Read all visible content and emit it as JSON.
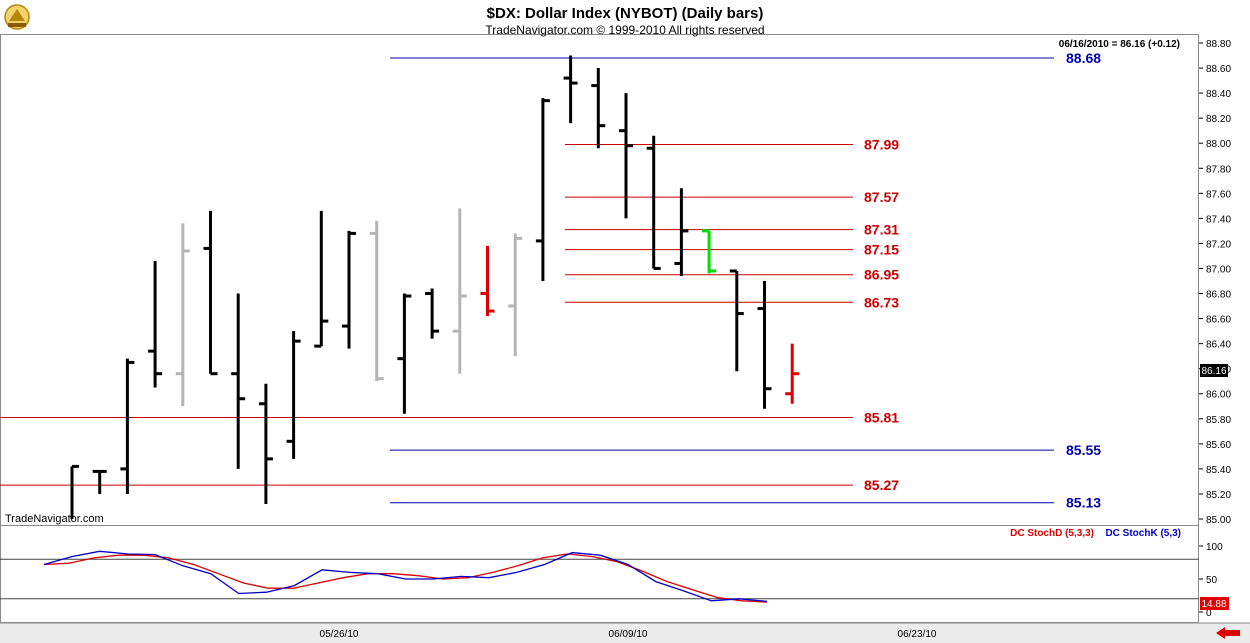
{
  "header": {
    "title": "$DX:  Dollar Index (NYBOT)  (Daily bars)",
    "subtitle": "TradeNavigator.com © 1999-2010 All rights reserved",
    "quote": "06/16/2010 = 86.16 (+0.12)",
    "watermark": "TradeNavigator.com"
  },
  "chart_data": [
    {
      "type": "ohlc",
      "title": "$DX:  Dollar Index (NYBOT)  (Daily bars)",
      "ylim": [
        85.0,
        88.8
      ],
      "yticks": [
        "88.80",
        "88.60",
        "88.40",
        "88.20",
        "88.00",
        "87.80",
        "87.60",
        "87.40",
        "87.20",
        "87.00",
        "86.80",
        "86.60",
        "86.40",
        "86.20",
        "86.00",
        "85.80",
        "85.60",
        "85.40",
        "85.20",
        "85.00"
      ],
      "last_price_label": "86.16",
      "bars": [
        {
          "o": null,
          "h": 85.42,
          "l": 85.0,
          "c": 85.42,
          "color": "#000000"
        },
        {
          "o": 85.38,
          "h": 85.38,
          "l": 85.2,
          "c": 85.38,
          "color": "#000000"
        },
        {
          "o": 85.4,
          "h": 86.28,
          "l": 85.2,
          "c": 86.25,
          "color": "#000000"
        },
        {
          "o": 86.34,
          "h": 87.06,
          "l": 86.05,
          "c": 86.16,
          "color": "#000000"
        },
        {
          "o": 86.16,
          "h": 87.36,
          "l": 85.9,
          "c": 87.14,
          "color": "#b4b4b4"
        },
        {
          "o": 87.16,
          "h": 87.46,
          "l": 86.16,
          "c": 86.16,
          "color": "#000000"
        },
        {
          "o": 86.16,
          "h": 86.8,
          "l": 85.4,
          "c": 85.96,
          "color": "#000000"
        },
        {
          "o": 85.92,
          "h": 86.08,
          "l": 85.12,
          "c": 85.48,
          "color": "#000000"
        },
        {
          "o": 85.62,
          "h": 86.5,
          "l": 85.48,
          "c": 86.42,
          "color": "#000000"
        },
        {
          "o": 86.38,
          "h": 87.46,
          "l": 86.38,
          "c": 86.58,
          "color": "#000000"
        },
        {
          "o": 86.54,
          "h": 87.3,
          "l": 86.36,
          "c": 87.28,
          "color": "#000000"
        },
        {
          "o": 87.28,
          "h": 87.38,
          "l": 86.1,
          "c": 86.12,
          "color": "#b4b4b4"
        },
        {
          "o": 86.28,
          "h": 86.8,
          "l": 85.84,
          "c": 86.78,
          "color": "#000000"
        },
        {
          "o": 86.8,
          "h": 86.84,
          "l": 86.44,
          "c": 86.5,
          "color": "#000000"
        },
        {
          "o": 86.5,
          "h": 87.48,
          "l": 86.16,
          "c": 86.78,
          "color": "#b4b4b4"
        },
        {
          "o": 86.8,
          "h": 87.18,
          "l": 86.62,
          "c": 86.66,
          "color": "#dd0000"
        },
        {
          "o": 86.7,
          "h": 87.28,
          "l": 86.3,
          "c": 87.24,
          "color": "#b4b4b4"
        },
        {
          "o": 87.22,
          "h": 88.36,
          "l": 86.9,
          "c": 88.34,
          "color": "#000000"
        },
        {
          "o": 88.52,
          "h": 88.7,
          "l": 88.16,
          "c": 88.48,
          "color": "#000000"
        },
        {
          "o": 88.46,
          "h": 88.6,
          "l": 87.96,
          "c": 88.14,
          "color": "#000000"
        },
        {
          "o": 88.1,
          "h": 88.4,
          "l": 87.4,
          "c": 87.98,
          "color": "#000000"
        },
        {
          "o": 87.96,
          "h": 88.06,
          "l": 87.0,
          "c": 87.0,
          "color": "#000000"
        },
        {
          "o": 87.04,
          "h": 87.64,
          "l": 86.94,
          "c": 87.3,
          "color": "#000000"
        },
        {
          "o": 87.3,
          "h": 87.3,
          "l": 86.96,
          "c": 86.98,
          "color": "#00dd00"
        },
        {
          "o": 86.98,
          "h": 86.98,
          "l": 86.18,
          "c": 86.64,
          "color": "#000000"
        },
        {
          "o": 86.68,
          "h": 86.9,
          "l": 85.88,
          "c": 86.04,
          "color": "#000000"
        },
        {
          "o": 86.0,
          "h": 86.4,
          "l": 85.92,
          "c": 86.16,
          "color": "#dd0000"
        }
      ],
      "levels": [
        {
          "value": 88.68,
          "label": "88.68",
          "color": "#0000aa"
        },
        {
          "value": 87.99,
          "label": "87.99",
          "color": "#cc0000"
        },
        {
          "value": 87.57,
          "label": "87.57",
          "color": "#cc0000"
        },
        {
          "value": 87.31,
          "label": "87.31",
          "color": "#cc0000"
        },
        {
          "value": 87.15,
          "label": "87.15",
          "color": "#cc0000"
        },
        {
          "value": 86.95,
          "label": "86.95",
          "color": "#cc0000"
        },
        {
          "value": 86.73,
          "label": "86.73",
          "color": "#cc0000"
        },
        {
          "value": 85.81,
          "label": "85.81",
          "color": "#cc0000"
        },
        {
          "value": 85.55,
          "label": "85.55",
          "color": "#0000aa"
        },
        {
          "value": 85.27,
          "label": "85.27",
          "color": "#cc0000"
        },
        {
          "value": 85.13,
          "label": "85.13",
          "color": "#0000aa"
        }
      ]
    },
    {
      "type": "line",
      "ylim": [
        0,
        100
      ],
      "yticks": [
        "100",
        "50",
        "0"
      ],
      "hlines": [
        80,
        20
      ],
      "last_value_label": "14.88",
      "series": [
        {
          "name": "DC StochD (5,3,3)",
          "color": "#dd0000",
          "values": [
            72,
            74,
            82,
            86,
            86,
            82,
            72,
            58,
            44,
            36,
            36,
            44,
            52,
            58,
            58,
            55,
            50,
            52,
            60,
            70,
            82,
            88,
            84,
            76,
            62,
            46,
            34,
            22,
            17,
            15
          ]
        },
        {
          "name": "DC StochK (5,3)",
          "color": "#0000cc",
          "values": [
            72,
            84,
            92,
            88,
            87,
            70,
            58,
            28,
            30,
            40,
            64,
            60,
            58,
            50,
            50,
            54,
            52,
            60,
            72,
            90,
            86,
            72,
            46,
            32,
            17,
            20,
            16
          ]
        }
      ]
    }
  ],
  "xaxis": {
    "labels": [
      "05/26/10",
      "06/09/10",
      "06/23/10"
    ]
  }
}
